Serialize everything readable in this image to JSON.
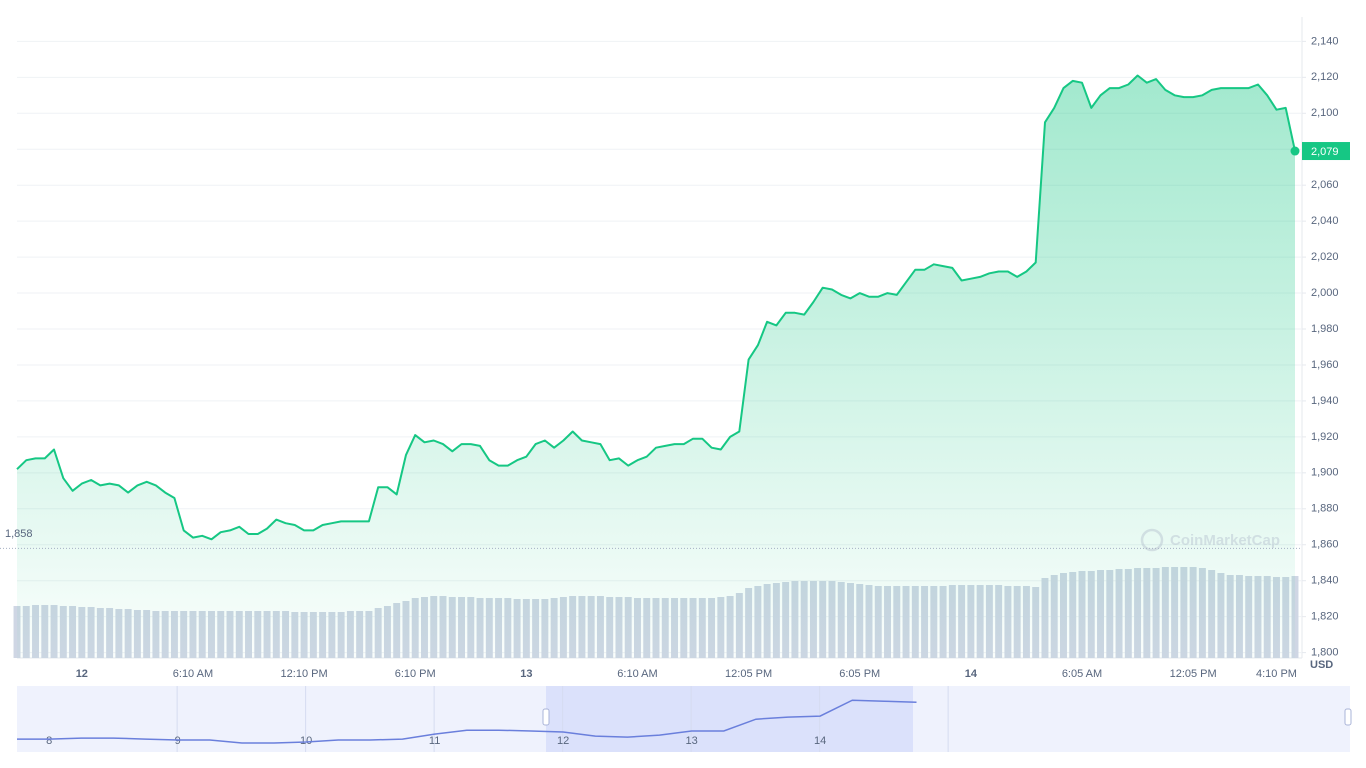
{
  "chart_data": [
    {
      "type": "area",
      "categories": [
        null,
        null,
        null,
        null,
        null,
        null,
        null,
        "12",
        null,
        null,
        null,
        null,
        null,
        null,
        null,
        null,
        null,
        null,
        null,
        "6:10 AM",
        null,
        null,
        null,
        null,
        null,
        null,
        null,
        null,
        null,
        null,
        null,
        "12:10 PM",
        null,
        null,
        null,
        null,
        null,
        null,
        null,
        null,
        null,
        null,
        null,
        "6:10 PM",
        null,
        null,
        null,
        null,
        null,
        null,
        null,
        null,
        null,
        null,
        null,
        "13",
        null,
        null,
        null,
        null,
        null,
        null,
        null,
        null,
        null,
        null,
        null,
        "6:10 AM",
        null,
        null,
        null,
        null,
        null,
        null,
        null,
        null,
        null,
        null,
        null,
        "12:05 PM",
        null,
        null,
        null,
        null,
        null,
        null,
        null,
        null,
        null,
        null,
        null,
        "6:05 PM",
        null,
        null,
        null,
        null,
        null,
        null,
        null,
        null,
        null,
        null,
        null,
        "14",
        null,
        null,
        null,
        null,
        null,
        null,
        null,
        null,
        null,
        null,
        null,
        "6:05 AM",
        null,
        null,
        null,
        null,
        null,
        null,
        null,
        null,
        null,
        null,
        null,
        "12:05 PM",
        null,
        null,
        null,
        null,
        null,
        null,
        null,
        null,
        "4:10 PM",
        null,
        null
      ],
      "values": [
        1902,
        1907,
        1908,
        1908,
        1913,
        1897,
        1890,
        1894,
        1896,
        1893,
        1894,
        1893,
        1889,
        1893,
        1895,
        1893,
        1889,
        1886,
        1868,
        1864,
        1865,
        1863,
        1867,
        1868,
        1870,
        1866,
        1866,
        1869,
        1874,
        1872,
        1871,
        1868,
        1868,
        1871,
        1872,
        1873,
        1873,
        1873,
        1873,
        1892,
        1892,
        1888,
        1910,
        1921,
        1917,
        1918,
        1916,
        1912,
        1916,
        1916,
        1915,
        1907,
        1904,
        1904,
        1907,
        1909,
        1916,
        1918,
        1914,
        1918,
        1923,
        1918,
        1917,
        1916,
        1907,
        1908,
        1904,
        1907,
        1909,
        1914,
        1915,
        1916,
        1916,
        1919,
        1919,
        1914,
        1913,
        1920,
        1923,
        1963,
        1971,
        1984,
        1982,
        1989,
        1989,
        1988,
        1995,
        2003,
        2002,
        1999,
        1997,
        2000,
        1998,
        1998,
        2000,
        1999,
        2006,
        2013,
        2013,
        2016,
        2015,
        2014,
        2007,
        2008,
        2009,
        2011,
        2012,
        2012,
        2009,
        2012,
        2017,
        2095,
        2103,
        2114,
        2118,
        2117,
        2103,
        2110,
        2114,
        2114,
        2116,
        2121,
        2117,
        2119,
        2113,
        2110,
        2109,
        2109,
        2110,
        2113,
        2114,
        2114,
        2114,
        2114,
        2116,
        2110,
        2102,
        2103,
        2079
      ],
      "color": "#16c784",
      "ylim": [
        1797,
        2153
      ],
      "yticks": [
        {
          "value": 1800,
          "label": "1,800"
        },
        {
          "value": 1820,
          "label": "1,820"
        },
        {
          "value": 1840,
          "label": "1,840"
        },
        {
          "value": 1860,
          "label": "1,860"
        },
        {
          "value": 1880,
          "label": "1,880"
        },
        {
          "value": 1900,
          "label": "1,900"
        },
        {
          "value": 1920,
          "label": "1,920"
        },
        {
          "value": 1940,
          "label": "1,940"
        },
        {
          "value": 1960,
          "label": "1,960"
        },
        {
          "value": 1980,
          "label": "1,980"
        },
        {
          "value": 2000,
          "label": "2,000"
        },
        {
          "value": 2020,
          "label": "2,020"
        },
        {
          "value": 2040,
          "label": "2,040"
        },
        {
          "value": 2060,
          "label": "2,060"
        },
        {
          "value": 2080,
          "label": "2,080"
        },
        {
          "value": 2100,
          "label": "2,100"
        },
        {
          "value": 2120,
          "label": "2,120"
        },
        {
          "value": 2140,
          "label": "2,140"
        }
      ],
      "grid": true,
      "y_unit": "USD",
      "reference": {
        "value": 1858,
        "label": "1,858"
      },
      "current": {
        "value": 2079,
        "label": "2,079"
      },
      "watermark": "CoinMarketCap",
      "volume": {
        "color": "#cfd6e4",
        "y2lim": [
          0,
          100
        ],
        "values": [
          52,
          52,
          53,
          53,
          53,
          52,
          52,
          51,
          51,
          50,
          50,
          49,
          49,
          48,
          48,
          47,
          47,
          47,
          47,
          47,
          47,
          47,
          47,
          47,
          47,
          47,
          47,
          47,
          47,
          47,
          46,
          46,
          46,
          46,
          46,
          46,
          47,
          47,
          47,
          50,
          52,
          55,
          57,
          60,
          61,
          62,
          62,
          61,
          61,
          61,
          60,
          60,
          60,
          60,
          59,
          59,
          59,
          59,
          60,
          61,
          62,
          62,
          62,
          62,
          61,
          61,
          61,
          60,
          60,
          60,
          60,
          60,
          60,
          60,
          60,
          60,
          61,
          62,
          65,
          70,
          72,
          74,
          75,
          76,
          77,
          77,
          77,
          77,
          77,
          76,
          75,
          74,
          73,
          72,
          72,
          72,
          72,
          72,
          72,
          72,
          72,
          73,
          73,
          73,
          73,
          73,
          73,
          72,
          72,
          72,
          71,
          80,
          83,
          85,
          86,
          87,
          87,
          88,
          88,
          89,
          89,
          90,
          90,
          90,
          91,
          91,
          91,
          91,
          90,
          88,
          85,
          83,
          83,
          82,
          82,
          82,
          81,
          81,
          82
        ]
      }
    },
    {
      "type": "line",
      "categories": [
        null,
        "8",
        null,
        null,
        null,
        "9",
        null,
        null,
        null,
        "10",
        null,
        null,
        null,
        "11",
        null,
        null,
        null,
        "12",
        null,
        null,
        null,
        "13",
        null,
        null,
        null,
        "14",
        null,
        null,
        null
      ],
      "values": [
        1876,
        1876,
        1882,
        1882,
        1876,
        1871,
        1871,
        1853,
        1853,
        1859,
        1871,
        1871,
        1876,
        1906,
        1929,
        1929,
        1924,
        1918,
        1894,
        1888,
        1900,
        1924,
        1924,
        1994,
        2006,
        2012,
        2106,
        2100,
        2094
      ],
      "color": "#6a7fdc",
      "ylim": [
        1800,
        2190
      ]
    }
  ]
}
